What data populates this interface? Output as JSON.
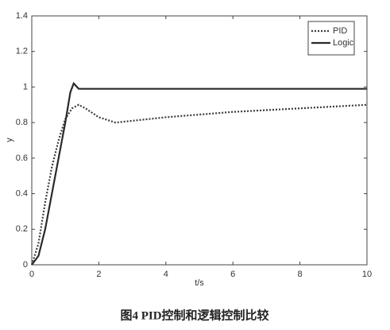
{
  "chart_data": {
    "type": "line",
    "caption": "图4   PID控制和逻辑控制比较",
    "xlabel": "t/s",
    "ylabel": "y",
    "xlim": [
      0,
      10
    ],
    "xticks": [
      0,
      2,
      4,
      6,
      8,
      10
    ],
    "ylim": [
      0,
      1.4
    ],
    "yticks": [
      0,
      0.2,
      0.4,
      0.6,
      0.8,
      1,
      1.2,
      1.4
    ],
    "legend": "upper-right",
    "series": [
      {
        "name": "PID",
        "color": "#3a3a3a",
        "style": "dotted",
        "x": [
          0,
          0.2,
          0.4,
          0.6,
          0.8,
          1.0,
          1.2,
          1.4,
          1.6,
          2,
          2.5,
          3,
          4,
          5,
          6,
          7,
          8,
          9,
          10
        ],
        "values": [
          0,
          0.12,
          0.35,
          0.55,
          0.7,
          0.82,
          0.88,
          0.9,
          0.88,
          0.83,
          0.8,
          0.81,
          0.83,
          0.845,
          0.86,
          0.87,
          0.88,
          0.89,
          0.9
        ]
      },
      {
        "name": "Logic",
        "color": "#2a2a2a",
        "style": "solid",
        "x": [
          0,
          0.2,
          0.4,
          0.6,
          0.8,
          1.0,
          1.15,
          1.25,
          1.4,
          2,
          4,
          6,
          8,
          10
        ],
        "values": [
          0,
          0.05,
          0.2,
          0.4,
          0.6,
          0.8,
          0.97,
          1.02,
          0.99,
          0.99,
          0.99,
          0.99,
          0.99,
          0.99
        ]
      }
    ]
  }
}
